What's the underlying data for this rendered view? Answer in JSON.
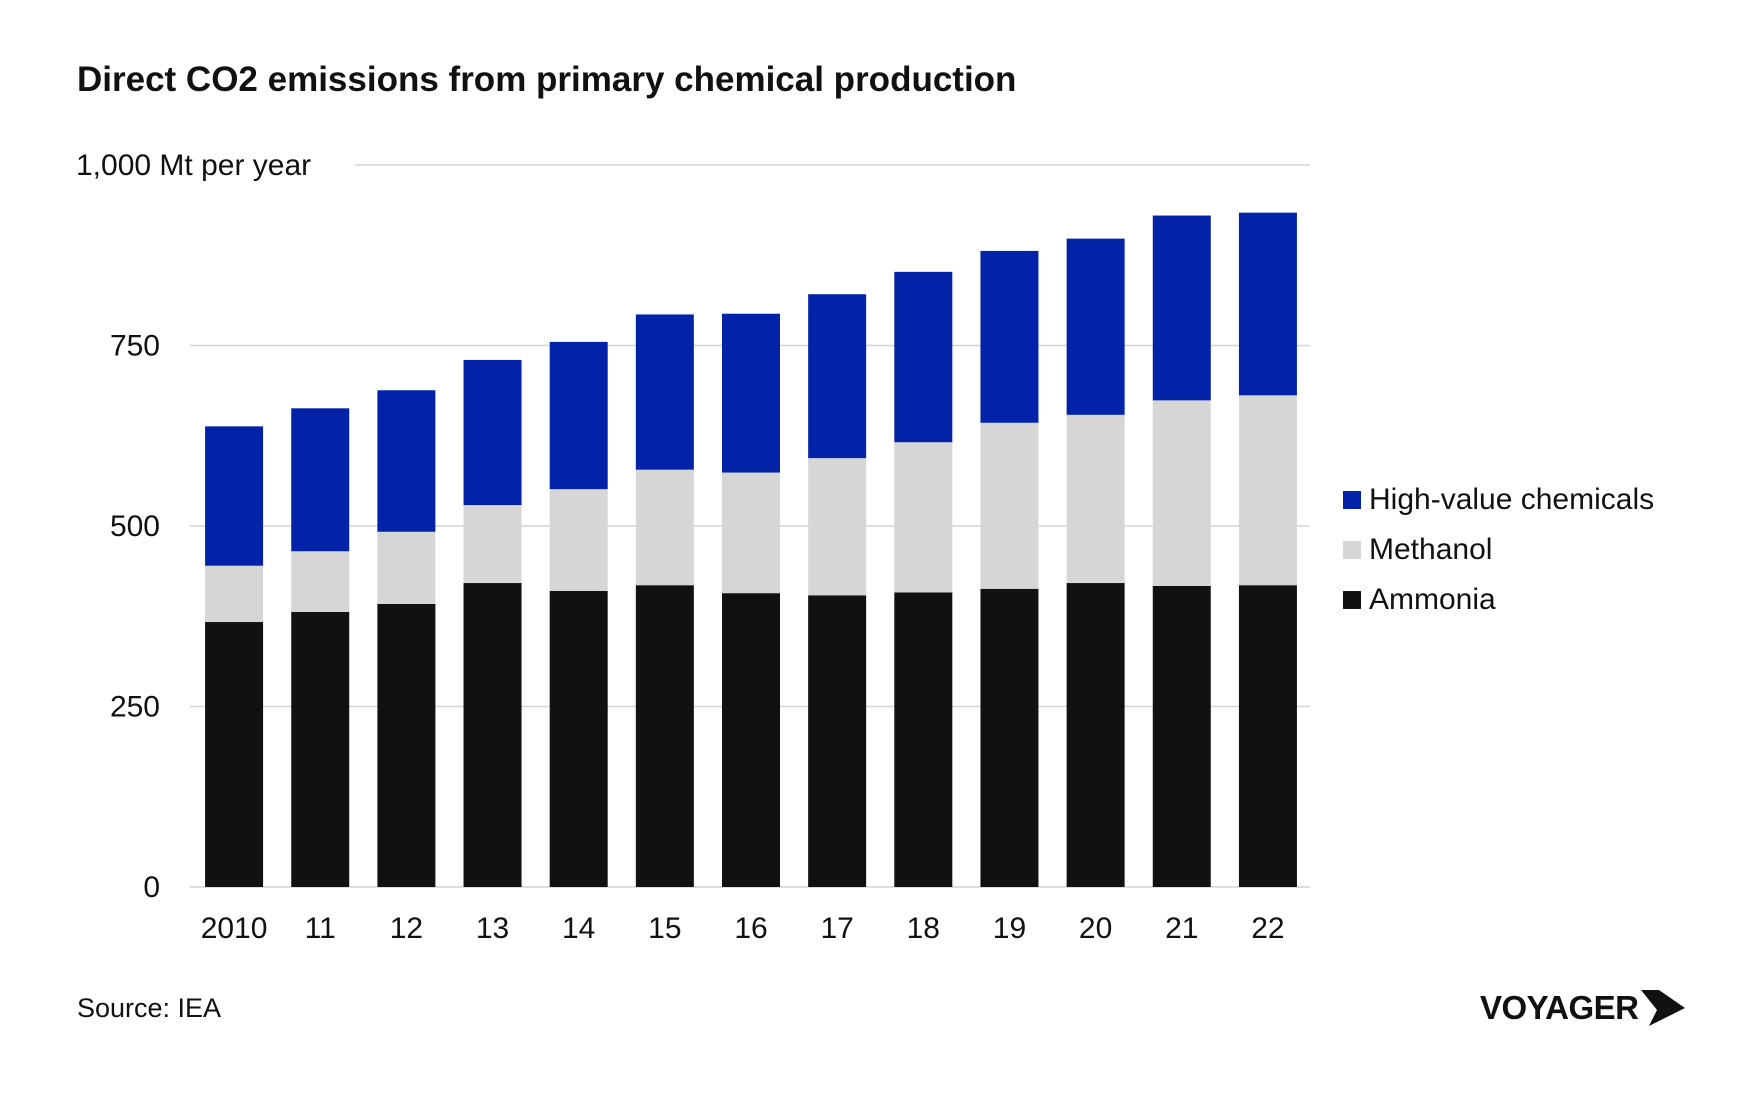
{
  "title": "Direct CO2 emissions from primary chemical production",
  "source": "Source: IEA",
  "brand": "VOYAGER",
  "colors": {
    "ammonia": "#111111",
    "methanol": "#d6d6d6",
    "hvc": "#0222a8",
    "grid": "#d4d4d4"
  },
  "chart_data": {
    "type": "bar",
    "stacked": true,
    "title": "Direct CO2 emissions from primary chemical production",
    "ylabel": "1,000 Mt per year",
    "ylim": [
      0,
      1000
    ],
    "yticks": [
      0,
      250,
      500,
      750,
      1000
    ],
    "ytick_labels": [
      "0",
      "250",
      "500",
      "750",
      "1,000 Mt per year"
    ],
    "categories": [
      "2010",
      "11",
      "12",
      "13",
      "14",
      "15",
      "16",
      "17",
      "18",
      "19",
      "20",
      "21",
      "22"
    ],
    "series": [
      {
        "name": "Ammonia",
        "values": [
          367,
          381,
          392,
          421,
          410,
          418,
          407,
          404,
          408,
          413,
          421,
          417,
          418
        ]
      },
      {
        "name": "Methanol",
        "values": [
          78,
          84,
          100,
          108,
          141,
          160,
          167,
          190,
          208,
          230,
          233,
          257,
          263
        ]
      },
      {
        "name": "High-value chemicals",
        "values": [
          193,
          198,
          196,
          201,
          204,
          215,
          220,
          227,
          236,
          238,
          244,
          256,
          253
        ]
      }
    ],
    "legend": [
      "High-value chemicals",
      "Methanol",
      "Ammonia"
    ],
    "legend_position": "right",
    "grid": true
  }
}
